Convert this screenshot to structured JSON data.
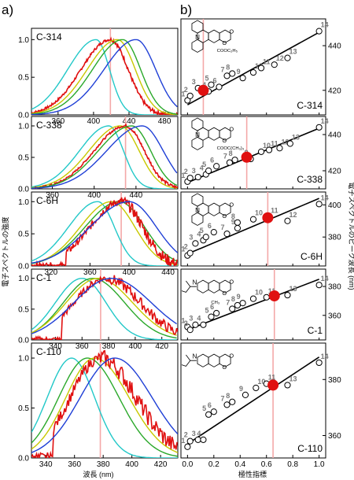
{
  "figure": {
    "label_a": "a)",
    "label_b": "b)",
    "ylabel_a": "電子スペクトルの強度",
    "xlabel_a": "波長 (nm)",
    "ylabel_b": "電子スペクトルのピーク波長 (nm)",
    "xlabel_b": "極性指標"
  },
  "colors": {
    "blue": "#1f3fd6",
    "green": "#2aa82a",
    "yellow": "#c8c800",
    "cyan": "#22c8c8",
    "red": "#e01010",
    "pink_line": "#f4a8a8",
    "label_gray": "#777777"
  },
  "chart_data": [
    {
      "type": "line",
      "panel": "a",
      "title": "C-314",
      "xlim": [
        330,
        495
      ],
      "ylim": [
        0,
        1.15
      ],
      "yticks": [
        0,
        0.5,
        1.0
      ],
      "xticks": [
        360,
        400,
        440,
        480
      ],
      "marker_x": 419,
      "series": [
        {
          "color": "cyan",
          "peak": 403,
          "sl": 32,
          "sr": 15
        },
        {
          "color": "red",
          "peak": 419,
          "sl": 33,
          "sr": 20,
          "noise": 0.02
        },
        {
          "color": "yellow",
          "peak": 427,
          "sl": 34,
          "sr": 20
        },
        {
          "color": "green",
          "peak": 433,
          "sl": 34,
          "sr": 20
        },
        {
          "color": "blue",
          "peak": 448,
          "sl": 36,
          "sr": 22
        }
      ]
    },
    {
      "type": "line",
      "panel": "a",
      "title": "C-338",
      "xlim": [
        340,
        480
      ],
      "ylim": [
        0,
        1.15
      ],
      "yticks": [
        0,
        0.5,
        1.0
      ],
      "xticks": [
        360,
        400,
        440
      ],
      "marker_x": 430,
      "series": [
        {
          "color": "cyan",
          "peak": 414,
          "sl": 28,
          "sr": 14
        },
        {
          "color": "yellow",
          "peak": 425,
          "sl": 30,
          "sr": 18
        },
        {
          "color": "red",
          "peak": 430,
          "sl": 30,
          "sr": 18,
          "noise": 0.02
        },
        {
          "color": "green",
          "peak": 436,
          "sl": 32,
          "sr": 18
        },
        {
          "color": "blue",
          "peak": 446,
          "sl": 34,
          "sr": 20
        }
      ]
    },
    {
      "type": "line",
      "panel": "a",
      "title": "C-6H",
      "xlim": [
        300,
        450
      ],
      "ylim": [
        0,
        1.15
      ],
      "yticks": [
        0,
        0.5,
        1.0
      ],
      "xticks": [
        320,
        360,
        400,
        440
      ],
      "marker_x": 392,
      "series": [
        {
          "color": "cyan",
          "peak": 368,
          "sl": 30,
          "sr": 17
        },
        {
          "color": "yellow",
          "peak": 382,
          "sl": 32,
          "sr": 24
        },
        {
          "color": "green",
          "peak": 390,
          "sl": 35,
          "sr": 26
        },
        {
          "color": "red",
          "peak": 392,
          "sl": 32,
          "sr": 22,
          "noise": 0.07,
          "xstart": 335
        },
        {
          "color": "blue",
          "peak": 400,
          "sl": 40,
          "sr": 28
        }
      ]
    },
    {
      "type": "line",
      "panel": "a",
      "title": "C-1",
      "xlim": [
        322,
        432
      ],
      "ylim": [
        0,
        1.15
      ],
      "yticks": [
        0,
        0.5,
        1.0
      ],
      "xticks": [
        340,
        360,
        380,
        400,
        420
      ],
      "marker_x": 374,
      "series": [
        {
          "color": "cyan",
          "peak": 360,
          "sl": 20,
          "sr": 18
        },
        {
          "color": "green",
          "peak": 368,
          "sl": 22,
          "sr": 24
        },
        {
          "color": "yellow",
          "peak": 372,
          "sl": 24,
          "sr": 26
        },
        {
          "color": "red",
          "peak": 378,
          "sl": 24,
          "sr": 26,
          "noise": 0.07,
          "xstart": 345
        },
        {
          "color": "blue",
          "peak": 382,
          "sl": 28,
          "sr": 30
        }
      ]
    },
    {
      "type": "line",
      "panel": "a",
      "title": "C-110",
      "xlim": [
        330,
        432
      ],
      "ylim": [
        0,
        1.15
      ],
      "yticks": [
        0,
        0.5,
        1.0
      ],
      "xticks": [
        340,
        360,
        380,
        400,
        420
      ],
      "marker_x": 378,
      "series": [
        {
          "color": "cyan",
          "peak": 358,
          "sl": 17,
          "sr": 16
        },
        {
          "color": "green",
          "peak": 369,
          "sl": 20,
          "sr": 22
        },
        {
          "color": "yellow",
          "peak": 374,
          "sl": 20,
          "sr": 24
        },
        {
          "color": "red",
          "peak": 378,
          "sl": 21,
          "sr": 25,
          "noise": 0.07,
          "xstart": 345
        },
        {
          "color": "blue",
          "peak": 388,
          "sl": 24,
          "sr": 26
        }
      ]
    },
    {
      "type": "scatter",
      "panel": "b",
      "title": "C-314",
      "xlim": [
        -0.05,
        1.05
      ],
      "ylim": [
        409,
        452
      ],
      "yticks": [
        420,
        440
      ],
      "line": [
        [
          0,
          413.5
        ],
        [
          1,
          446
        ]
      ],
      "highlight": [
        0.12,
        420
      ],
      "points": [
        [
          0.0,
          415.5,
          "1"
        ],
        [
          0.02,
          417.5,
          "2"
        ],
        [
          0.08,
          421,
          "3"
        ],
        [
          0.16,
          419.5,
          "4"
        ],
        [
          0.18,
          422.5,
          "5"
        ],
        [
          0.24,
          421.5,
          "6"
        ],
        [
          0.3,
          426.5,
          "7"
        ],
        [
          0.34,
          427.5,
          "8"
        ],
        [
          0.42,
          425.5,
          "9"
        ],
        [
          0.5,
          428,
          "10"
        ],
        [
          0.56,
          430,
          "11"
        ],
        [
          0.66,
          431.5,
          "12"
        ],
        [
          0.76,
          434.5,
          "13"
        ],
        [
          1.0,
          446.5,
          "14"
        ]
      ]
    },
    {
      "type": "scatter",
      "panel": "b",
      "title": "C-338",
      "xlim": [
        -0.05,
        1.05
      ],
      "ylim": [
        410,
        450
      ],
      "yticks": [
        420,
        440
      ],
      "line": [
        [
          0,
          413.5
        ],
        [
          1,
          443.5
        ]
      ],
      "highlight": [
        0.45,
        427.5
      ],
      "points": [
        [
          0.0,
          414,
          "1"
        ],
        [
          0.02,
          416,
          "2"
        ],
        [
          0.08,
          416.5,
          "3"
        ],
        [
          0.14,
          418,
          "4"
        ],
        [
          0.16,
          420,
          "5"
        ],
        [
          0.22,
          422.5,
          "6"
        ],
        [
          0.32,
          424.5,
          "7"
        ],
        [
          0.36,
          426,
          "8"
        ],
        [
          0.48,
          426.5,
          "9"
        ],
        [
          0.56,
          430.5,
          "10"
        ],
        [
          0.62,
          431.5,
          "11"
        ],
        [
          0.7,
          432.5,
          "12"
        ],
        [
          0.78,
          435,
          "13"
        ],
        [
          1.0,
          444,
          "14"
        ]
      ]
    },
    {
      "type": "scatter",
      "panel": "b",
      "title": "C-6H",
      "xlim": [
        -0.05,
        1.05
      ],
      "ylim": [
        362,
        408
      ],
      "yticks": [
        380,
        400
      ],
      "line": [
        [
          0,
          369.5
        ],
        [
          1,
          404
        ]
      ],
      "highlight": [
        0.61,
        392
      ],
      "points": [
        [
          0.0,
          368.5,
          "1"
        ],
        [
          0.02,
          370,
          "2"
        ],
        [
          0.06,
          376,
          "3"
        ],
        [
          0.12,
          378,
          "4"
        ],
        [
          0.14,
          380,
          "5"
        ],
        [
          0.2,
          383,
          "6"
        ],
        [
          0.3,
          382,
          "7"
        ],
        [
          0.38,
          389,
          "8"
        ],
        [
          0.38,
          385.5,
          "9"
        ],
        [
          0.5,
          391,
          "10"
        ],
        [
          0.62,
          392.5,
          "11"
        ],
        [
          0.76,
          390,
          "12"
        ],
        [
          1.0,
          400.5,
          "14"
        ]
      ]
    },
    {
      "type": "scatter",
      "panel": "b",
      "title": "C-1",
      "xlim": [
        -0.05,
        1.05
      ],
      "ylim": [
        343,
        392
      ],
      "yticks": [
        360,
        380
      ],
      "line": [
        [
          0,
          350
        ],
        [
          1,
          385
        ]
      ],
      "highlight": [
        0.66,
        373.5
      ],
      "points": [
        [
          0.0,
          352,
          "1"
        ],
        [
          0.02,
          350,
          "2"
        ],
        [
          0.06,
          353.5,
          "3"
        ],
        [
          0.12,
          353.5,
          "4"
        ],
        [
          0.18,
          359,
          "5"
        ],
        [
          0.22,
          361.5,
          "6"
        ],
        [
          0.34,
          364.5,
          "7"
        ],
        [
          0.38,
          367,
          "8"
        ],
        [
          0.42,
          368.5,
          "9"
        ],
        [
          0.5,
          371.5,
          "10"
        ],
        [
          0.6,
          372.5,
          "11"
        ],
        [
          0.76,
          374,
          "13"
        ],
        [
          1.0,
          381,
          "14"
        ]
      ]
    },
    {
      "type": "scatter",
      "panel": "b",
      "title": "C-110",
      "xlim": [
        -0.05,
        1.05
      ],
      "ylim": [
        352,
        393
      ],
      "yticks": [
        360,
        380
      ],
      "xticks": [
        0.0,
        0.2,
        0.4,
        0.6,
        0.8,
        1.0
      ],
      "line": [
        [
          0,
          357
        ],
        [
          1,
          388
        ]
      ],
      "highlight": [
        0.65,
        378
      ],
      "points": [
        [
          0.0,
          356,
          "1"
        ],
        [
          0.02,
          358,
          "2"
        ],
        [
          0.08,
          358.5,
          "3"
        ],
        [
          0.12,
          358.5,
          "4"
        ],
        [
          0.16,
          367.5,
          "5"
        ],
        [
          0.2,
          368.5,
          "6"
        ],
        [
          0.3,
          371,
          "7"
        ],
        [
          0.34,
          372,
          "8"
        ],
        [
          0.44,
          374.5,
          "9"
        ],
        [
          0.52,
          377,
          "10"
        ],
        [
          0.6,
          378.5,
          "11"
        ],
        [
          0.76,
          378,
          "13"
        ],
        [
          1.0,
          386,
          "14"
        ]
      ]
    }
  ]
}
